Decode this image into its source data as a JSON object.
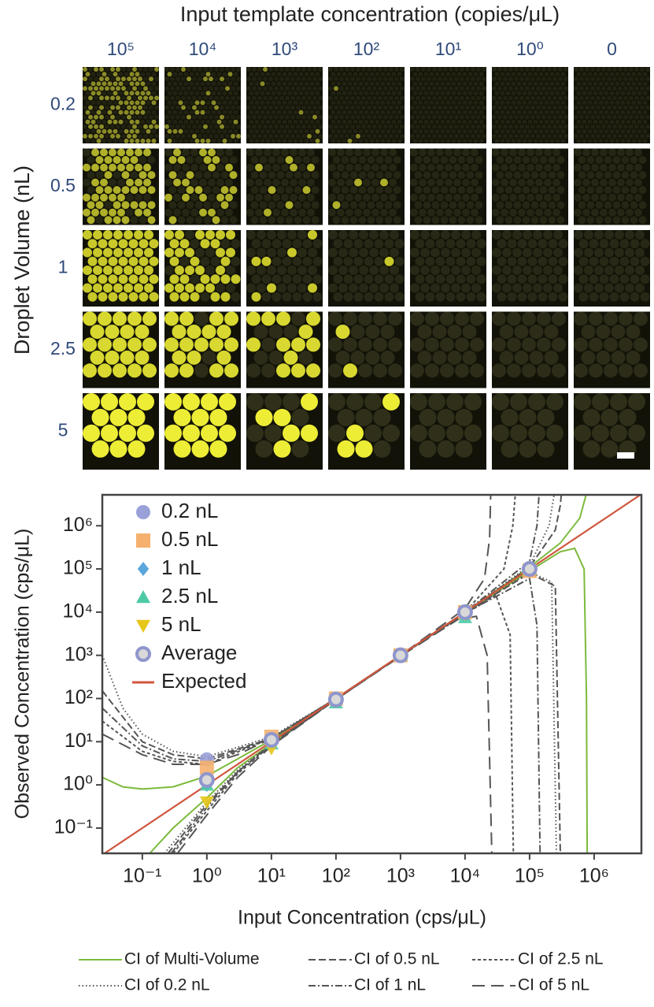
{
  "image_grid": {
    "title": "Input template concentration (copies/μL)",
    "columns": [
      "10⁵",
      "10⁴",
      "10³",
      "10²",
      "10¹",
      "10⁰",
      "0"
    ],
    "row_title": "Droplet Volume (nL)",
    "rows": [
      "0.2",
      "0.5",
      "1",
      "2.5",
      "5"
    ]
  },
  "chart_data": {
    "type": "scatter",
    "x_label": "Input Concentration (cps/μL)",
    "y_label": "Observed Concentration (cps/μL)",
    "log_x": true,
    "log_y": true,
    "xlim": [
      0.024,
      5400000
    ],
    "ylim": [
      0.026,
      5200000
    ],
    "xticks": [
      {
        "value": 0.1,
        "label": "10⁻¹"
      },
      {
        "value": 1,
        "label": "10⁰"
      },
      {
        "value": 10,
        "label": "10¹"
      },
      {
        "value": 100,
        "label": "10²"
      },
      {
        "value": 1000,
        "label": "10³"
      },
      {
        "value": 10000,
        "label": "10⁴"
      },
      {
        "value": 100000,
        "label": "10⁵"
      },
      {
        "value": 1000000,
        "label": "10⁶"
      }
    ],
    "yticks": [
      {
        "value": 0.1,
        "label": "10⁻¹"
      },
      {
        "value": 1,
        "label": "10⁰"
      },
      {
        "value": 10,
        "label": "10¹"
      },
      {
        "value": 100,
        "label": "10²"
      },
      {
        "value": 1000,
        "label": "10³"
      },
      {
        "value": 10000,
        "label": "10⁴"
      },
      {
        "value": 100000,
        "label": "10⁵"
      },
      {
        "value": 1000000,
        "label": "10⁶"
      }
    ],
    "x": [
      1,
      10,
      100,
      1000,
      10000,
      100000
    ],
    "series": [
      {
        "name": "0.2 nL",
        "marker": "circle",
        "color": "#9aa0d8",
        "values": [
          3.9,
          11,
          100,
          1000,
          10000,
          100000
        ]
      },
      {
        "name": "0.5 nL",
        "marker": "square",
        "color": "#f5b06e",
        "values": [
          2.5,
          13,
          100,
          1000,
          10000,
          90000
        ]
      },
      {
        "name": "1 nL",
        "marker": "diamond",
        "color": "#5aa7dc",
        "values": [
          1.0,
          10,
          95,
          1000,
          9000,
          100000
        ]
      },
      {
        "name": "2.5 nL",
        "marker": "triangle",
        "color": "#4ec9a6",
        "values": [
          1.0,
          9,
          80,
          1000,
          7500,
          100000
        ]
      },
      {
        "name": "5 nL",
        "marker": "triangle-down",
        "color": "#e6c619",
        "values": [
          0.4,
          7,
          90,
          1000,
          9000,
          100000
        ]
      },
      {
        "name": "Average",
        "marker": "ring",
        "color": "#8f96cc",
        "values": [
          1.3,
          11,
          95,
          1000,
          10000,
          100000
        ]
      },
      {
        "name": "Expected",
        "marker": "line",
        "color": "#d0563e",
        "x": [
          0.024,
          5400000
        ],
        "values": [
          0.024,
          5400000
        ]
      }
    ],
    "ci_series": [
      {
        "name": "CI of Multi-Volume",
        "style": "solid",
        "color": "#7cba3c",
        "x": [
          0.024,
          0.05,
          0.1,
          0.3,
          1,
          3,
          10,
          100,
          1000,
          10000,
          100000,
          300000,
          600000,
          750000,
          null,
          0.13,
          0.3,
          1,
          3,
          10,
          100,
          1000,
          10000,
          100000,
          300000,
          500000,
          700000,
          760000,
          780000
        ],
        "values": [
          1.5,
          0.9,
          0.8,
          0.9,
          1.6,
          4,
          11,
          100,
          1000,
          10000,
          110000,
          400000,
          1500000,
          5200000,
          null,
          0.026,
          0.1,
          0.5,
          2.5,
          9,
          95,
          1000,
          9500,
          90000,
          250000,
          300000,
          100000,
          100,
          0.026
        ]
      },
      {
        "name": "CI of 0.5 nL",
        "style": "dashed",
        "color": "#555555",
        "x": [
          0.024,
          0.1,
          0.3,
          1,
          10,
          100,
          1000,
          10000,
          100000,
          250000,
          300000,
          310000,
          null,
          0.25,
          1,
          3,
          10,
          100,
          1000,
          10000,
          100000,
          250000,
          300000
        ],
        "values": [
          150,
          10,
          5,
          4,
          12,
          100,
          1000,
          10000,
          110000,
          800000,
          3000000,
          5200000,
          null,
          0.026,
          0.35,
          2,
          9,
          95,
          990,
          9600,
          80000,
          40000,
          0.026
        ]
      },
      {
        "name": "CI of 2.5 nL",
        "style": "short-dash",
        "color": "#555555",
        "x": [
          0.024,
          0.1,
          0.3,
          1,
          10,
          100,
          1000,
          10000,
          40000,
          55000,
          60000,
          null,
          0.3,
          1,
          3,
          10,
          100,
          1000,
          10000,
          30000,
          50000,
          56000
        ],
        "values": [
          30,
          6,
          3.5,
          3,
          12,
          100,
          1000,
          10000,
          100000,
          1000000,
          5200000,
          null,
          0.026,
          0.25,
          1.8,
          8.5,
          95,
          980,
          9000,
          25000,
          3000,
          0.026
        ]
      },
      {
        "name": "CI of 0.2 nL",
        "style": "dotted",
        "color": "#555555",
        "x": [
          0.024,
          0.05,
          0.1,
          0.3,
          1,
          10,
          100,
          1000,
          10000,
          100000,
          200000,
          240000,
          null,
          0.22,
          1,
          3,
          10,
          100,
          1000,
          10000,
          100000,
          220000,
          260000
        ],
        "values": [
          1000,
          60,
          15,
          6,
          4.5,
          13,
          100,
          1000,
          10000,
          120000,
          1000000,
          5200000,
          null,
          0.026,
          0.4,
          2.2,
          9,
          95,
          990,
          9700,
          85000,
          50000,
          0.026
        ]
      },
      {
        "name": "CI of 1 nL",
        "style": "dash-dot",
        "color": "#555555",
        "x": [
          0.024,
          0.1,
          0.3,
          1,
          10,
          100,
          1000,
          10000,
          100000,
          130000,
          140000,
          null,
          0.28,
          1,
          3,
          10,
          100,
          1000,
          10000,
          100000,
          130000,
          145000
        ],
        "values": [
          60,
          8,
          4,
          3.5,
          12,
          100,
          1000,
          10000,
          150000,
          1000000,
          5200000,
          null,
          0.026,
          0.3,
          2,
          8.5,
          95,
          980,
          9500,
          60000,
          5000,
          0.026
        ]
      },
      {
        "name": "CI of 5 nL",
        "style": "long-dash",
        "color": "#555555",
        "x": [
          0.024,
          0.1,
          0.3,
          1,
          3,
          10,
          100,
          1000,
          10000,
          20000,
          24000,
          25000,
          null,
          0.35,
          1,
          3,
          10,
          100,
          1000,
          8000,
          15000,
          22000,
          26000
        ],
        "values": [
          15,
          5,
          3,
          3,
          5,
          12,
          100,
          1000,
          12000,
          60000,
          500000,
          5200000,
          null,
          0.026,
          0.2,
          1.5,
          8,
          95,
          950,
          7000,
          8000,
          1000,
          0.026
        ]
      }
    ]
  }
}
